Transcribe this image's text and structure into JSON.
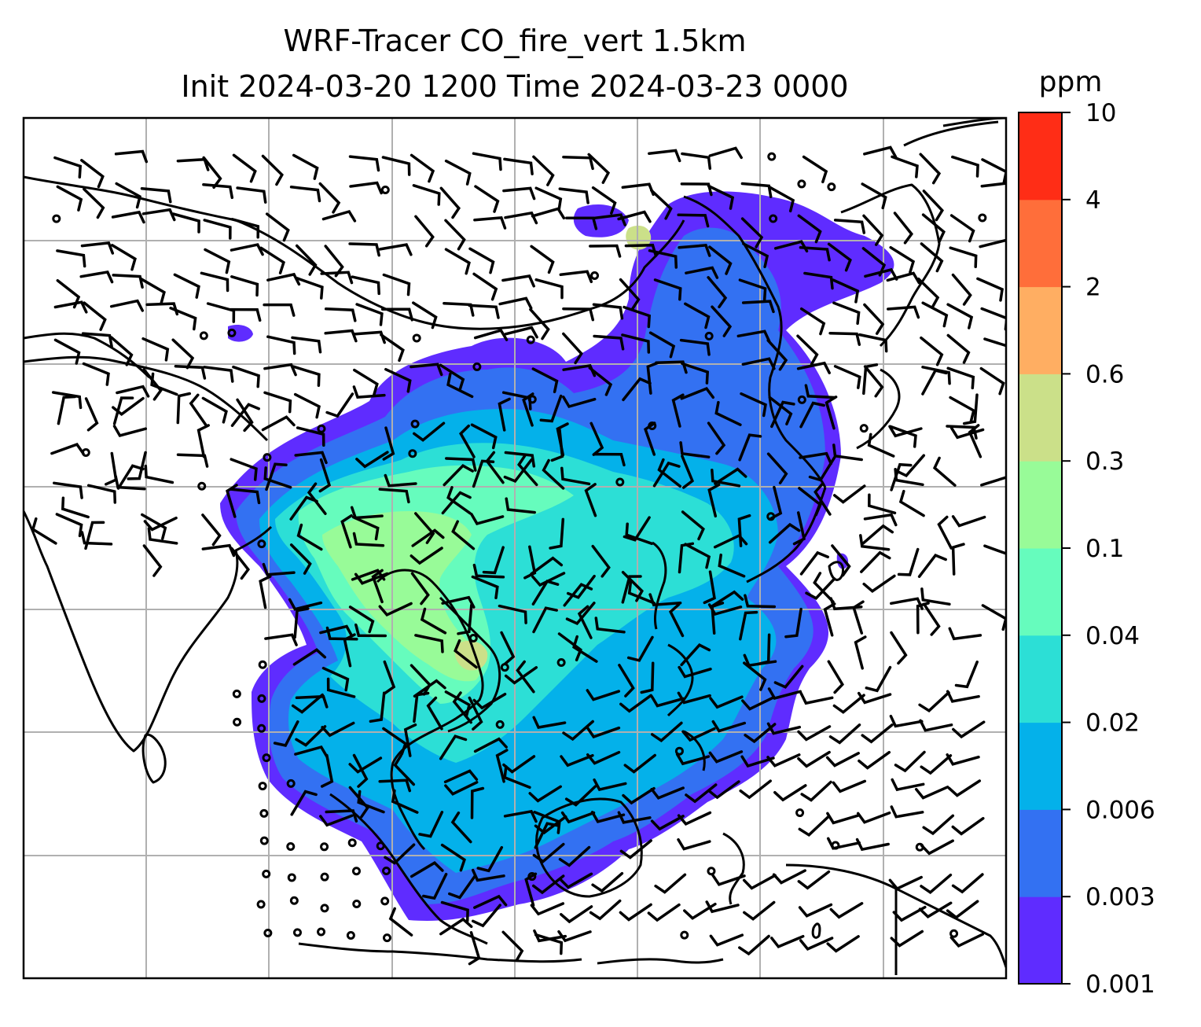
{
  "figure": {
    "title_line_1": "WRF-Tracer CO_fire_vert 1.5km",
    "title_line_2": "Init 2024-03-20 1200 Time 2024-03-23 0000"
  },
  "colorbar": {
    "unit": "ppm",
    "tick_labels": [
      "0.001",
      "0.003",
      "0.006",
      "0.02",
      "0.04",
      "0.1",
      "0.3",
      "0.6",
      "2",
      "4",
      "10"
    ],
    "colors": [
      "#5f2cff",
      "#3371f2",
      "#04b1ea",
      "#2cdfd6",
      "#66fcbd",
      "#98fb98",
      "#cbe089",
      "#ffae62",
      "#ff6e3a",
      "#ff2d16"
    ]
  },
  "map": {
    "coastline_color": "#000000",
    "gridline_color": "#b0b0b0",
    "wind_barb_color": "#000000",
    "region": "South and Southeast Asia"
  }
}
